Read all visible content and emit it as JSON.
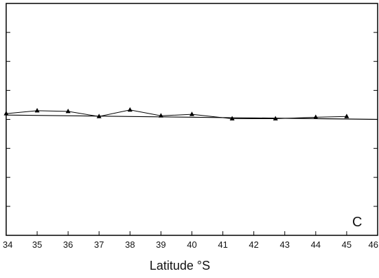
{
  "chart_data": {
    "type": "line",
    "title": "",
    "panel_label": "C",
    "xlabel": "Latitude °S",
    "ylabel": "",
    "xlim": [
      34,
      46
    ],
    "ylim": [
      -8,
      8
    ],
    "x_ticks": [
      "34",
      "35",
      "36",
      "37",
      "38",
      "39",
      "40",
      "41",
      "42",
      "43",
      "44",
      "45",
      "46"
    ],
    "grid": false,
    "series": [
      {
        "marker": "triangle",
        "color": "#000000",
        "x": [
          34.0,
          35.0,
          36.0,
          37.0,
          38.0,
          39.0,
          40.0,
          41.3,
          42.7,
          44.0,
          45.0
        ],
        "y": [
          0.4,
          0.6,
          0.55,
          0.2,
          0.65,
          0.25,
          0.35,
          0.05,
          0.05,
          0.15,
          0.2
        ]
      }
    ],
    "reference_line": {
      "type": "regression",
      "y_at_xmin": 0.3,
      "y_at_xmax": 0.0
    }
  }
}
